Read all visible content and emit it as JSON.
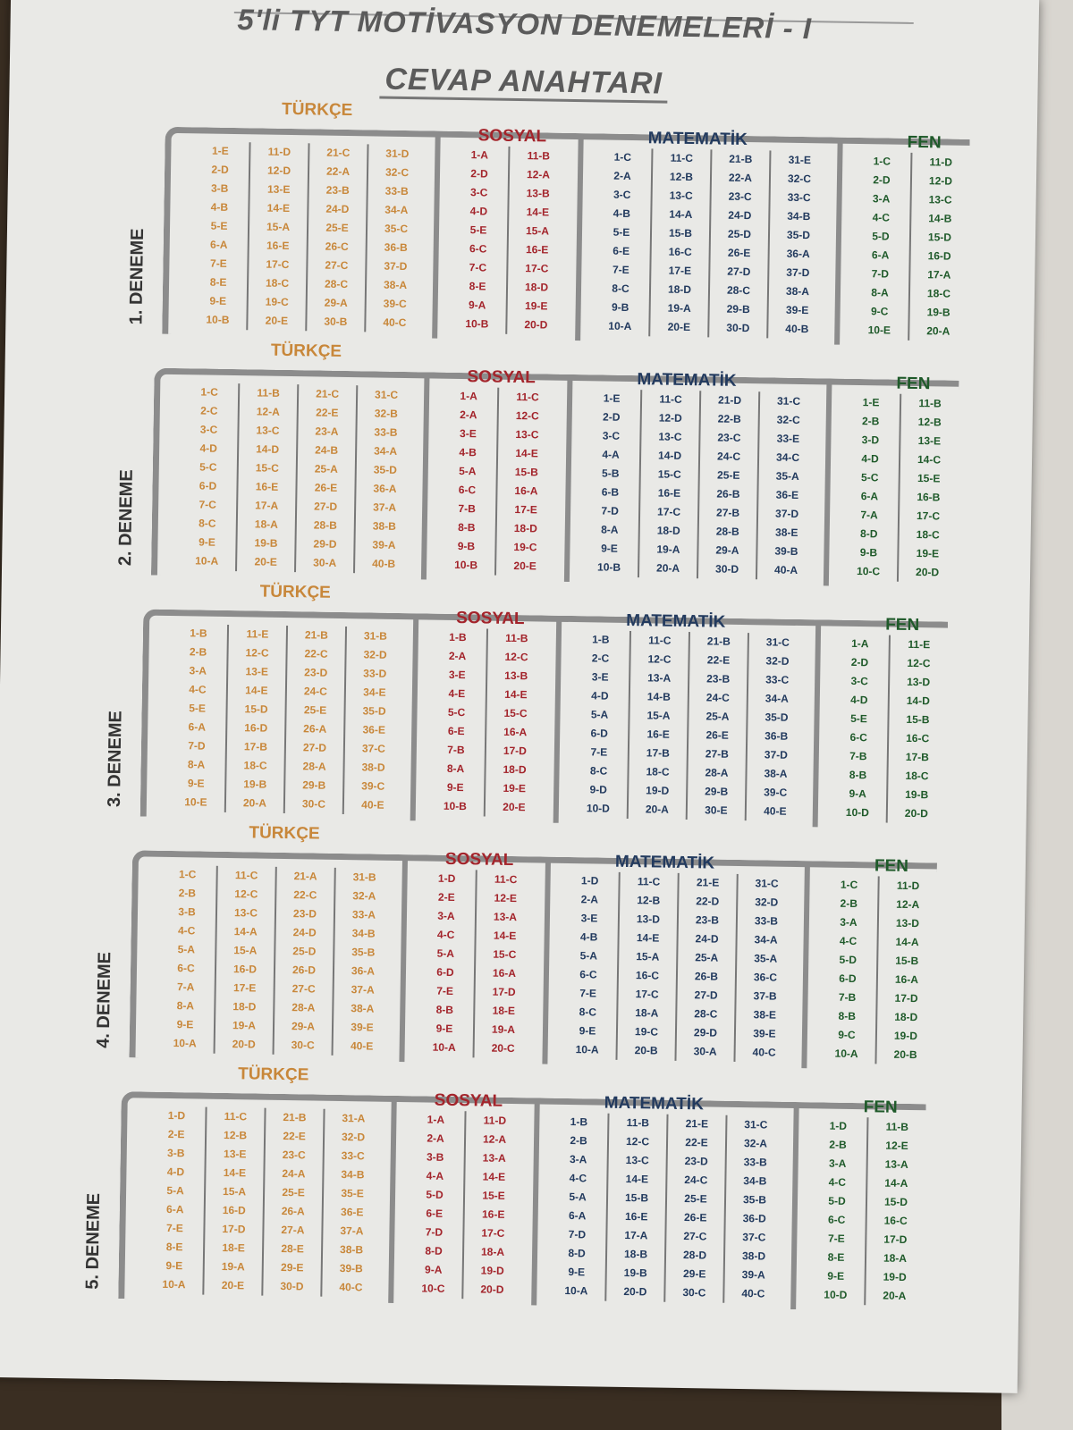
{
  "header": {
    "title": "5'li TYT MOTİVASYON DENEMELERİ - I",
    "subtitle": "CEVAP ANAHTARI"
  },
  "colors": {
    "turkce": "#c8873a",
    "sosyal": "#a3242b",
    "matematik": "#223a5e",
    "fen": "#1f5a2a"
  },
  "subjects": {
    "turkce": "TÜRKÇE",
    "sosyal": "SOSYAL",
    "matematik": "MATEMATİK",
    "fen": "FEN"
  },
  "denemeler": [
    {
      "label": "1. DENEME",
      "turkce": [
        "1-E",
        "2-D",
        "3-B",
        "4-B",
        "5-E",
        "6-A",
        "7-E",
        "8-E",
        "9-E",
        "10-B",
        "11-D",
        "12-D",
        "13-E",
        "14-E",
        "15-A",
        "16-E",
        "17-C",
        "18-C",
        "19-C",
        "20-E",
        "21-C",
        "22-A",
        "23-B",
        "24-D",
        "25-E",
        "26-C",
        "27-C",
        "28-C",
        "29-A",
        "30-B",
        "31-D",
        "32-C",
        "33-B",
        "34-A",
        "35-C",
        "36-B",
        "37-D",
        "38-A",
        "39-C",
        "40-C"
      ],
      "sosyal": [
        "1-A",
        "2-D",
        "3-C",
        "4-D",
        "5-E",
        "6-C",
        "7-C",
        "8-E",
        "9-A",
        "10-B",
        "11-B",
        "12-A",
        "13-B",
        "14-E",
        "15-A",
        "16-E",
        "17-C",
        "18-D",
        "19-E",
        "20-D"
      ],
      "matematik": [
        "1-C",
        "2-A",
        "3-C",
        "4-B",
        "5-E",
        "6-E",
        "7-E",
        "8-C",
        "9-B",
        "10-A",
        "11-C",
        "12-B",
        "13-C",
        "14-A",
        "15-B",
        "16-C",
        "17-E",
        "18-D",
        "19-A",
        "20-E",
        "21-B",
        "22-A",
        "23-C",
        "24-D",
        "25-D",
        "26-E",
        "27-D",
        "28-C",
        "29-B",
        "30-D",
        "31-E",
        "32-C",
        "33-C",
        "34-B",
        "35-D",
        "36-A",
        "37-D",
        "38-A",
        "39-E",
        "40-B"
      ],
      "fen": [
        "1-C",
        "2-D",
        "3-A",
        "4-C",
        "5-D",
        "6-A",
        "7-D",
        "8-A",
        "9-C",
        "10-E",
        "11-D",
        "12-D",
        "13-C",
        "14-B",
        "15-D",
        "16-D",
        "17-A",
        "18-C",
        "19-B",
        "20-A"
      ]
    },
    {
      "label": "2. DENEME",
      "turkce": [
        "1-C",
        "2-C",
        "3-C",
        "4-D",
        "5-C",
        "6-D",
        "7-C",
        "8-C",
        "9-E",
        "10-A",
        "11-B",
        "12-A",
        "13-C",
        "14-D",
        "15-C",
        "16-E",
        "17-A",
        "18-A",
        "19-B",
        "20-E",
        "21-C",
        "22-E",
        "23-A",
        "24-B",
        "25-A",
        "26-E",
        "27-D",
        "28-B",
        "29-D",
        "30-A",
        "31-C",
        "32-B",
        "33-B",
        "34-A",
        "35-D",
        "36-A",
        "37-A",
        "38-B",
        "39-A",
        "40-B"
      ],
      "sosyal": [
        "1-A",
        "2-A",
        "3-E",
        "4-B",
        "5-A",
        "6-C",
        "7-B",
        "8-B",
        "9-B",
        "10-B",
        "11-C",
        "12-C",
        "13-C",
        "14-E",
        "15-B",
        "16-A",
        "17-E",
        "18-D",
        "19-C",
        "20-E"
      ],
      "matematik": [
        "1-E",
        "2-D",
        "3-C",
        "4-A",
        "5-B",
        "6-B",
        "7-D",
        "8-A",
        "9-E",
        "10-B",
        "11-C",
        "12-D",
        "13-C",
        "14-D",
        "15-C",
        "16-E",
        "17-C",
        "18-D",
        "19-A",
        "20-A",
        "21-D",
        "22-B",
        "23-C",
        "24-C",
        "25-E",
        "26-B",
        "27-B",
        "28-B",
        "29-A",
        "30-D",
        "31-C",
        "32-C",
        "33-E",
        "34-C",
        "35-A",
        "36-E",
        "37-D",
        "38-E",
        "39-B",
        "40-A"
      ],
      "fen": [
        "1-E",
        "2-B",
        "3-D",
        "4-D",
        "5-C",
        "6-A",
        "7-A",
        "8-D",
        "9-B",
        "10-C",
        "11-B",
        "12-B",
        "13-E",
        "14-C",
        "15-E",
        "16-B",
        "17-C",
        "18-C",
        "19-E",
        "20-D"
      ]
    },
    {
      "label": "3. DENEME",
      "turkce": [
        "1-B",
        "2-B",
        "3-A",
        "4-C",
        "5-E",
        "6-A",
        "7-D",
        "8-A",
        "9-E",
        "10-E",
        "11-E",
        "12-C",
        "13-E",
        "14-E",
        "15-D",
        "16-D",
        "17-B",
        "18-C",
        "19-B",
        "20-A",
        "21-B",
        "22-C",
        "23-D",
        "24-C",
        "25-E",
        "26-A",
        "27-D",
        "28-A",
        "29-B",
        "30-C",
        "31-B",
        "32-D",
        "33-D",
        "34-E",
        "35-D",
        "36-E",
        "37-C",
        "38-D",
        "39-C",
        "40-E"
      ],
      "sosyal": [
        "1-B",
        "2-A",
        "3-E",
        "4-E",
        "5-C",
        "6-E",
        "7-B",
        "8-A",
        "9-E",
        "10-B",
        "11-B",
        "12-C",
        "13-B",
        "14-E",
        "15-C",
        "16-A",
        "17-D",
        "18-D",
        "19-E",
        "20-E"
      ],
      "matematik": [
        "1-B",
        "2-C",
        "3-E",
        "4-D",
        "5-A",
        "6-D",
        "7-E",
        "8-C",
        "9-D",
        "10-D",
        "11-C",
        "12-C",
        "13-A",
        "14-B",
        "15-A",
        "16-E",
        "17-B",
        "18-C",
        "19-D",
        "20-A",
        "21-B",
        "22-E",
        "23-B",
        "24-C",
        "25-A",
        "26-E",
        "27-B",
        "28-A",
        "29-B",
        "30-E",
        "31-C",
        "32-D",
        "33-C",
        "34-A",
        "35-D",
        "36-B",
        "37-D",
        "38-A",
        "39-C",
        "40-E"
      ],
      "fen": [
        "1-A",
        "2-D",
        "3-C",
        "4-D",
        "5-E",
        "6-C",
        "7-B",
        "8-B",
        "9-A",
        "10-D",
        "11-E",
        "12-C",
        "13-D",
        "14-D",
        "15-B",
        "16-C",
        "17-B",
        "18-C",
        "19-B",
        "20-D"
      ]
    },
    {
      "label": "4. DENEME",
      "turkce": [
        "1-C",
        "2-B",
        "3-B",
        "4-C",
        "5-A",
        "6-C",
        "7-A",
        "8-A",
        "9-E",
        "10-A",
        "11-C",
        "12-C",
        "13-C",
        "14-A",
        "15-A",
        "16-D",
        "17-E",
        "18-D",
        "19-A",
        "20-D",
        "21-A",
        "22-C",
        "23-D",
        "24-D",
        "25-D",
        "26-D",
        "27-C",
        "28-A",
        "29-A",
        "30-C",
        "31-B",
        "32-A",
        "33-A",
        "34-B",
        "35-B",
        "36-A",
        "37-A",
        "38-A",
        "39-E",
        "40-E"
      ],
      "sosyal": [
        "1-D",
        "2-E",
        "3-A",
        "4-C",
        "5-A",
        "6-D",
        "7-E",
        "8-B",
        "9-E",
        "10-A",
        "11-C",
        "12-E",
        "13-A",
        "14-E",
        "15-C",
        "16-A",
        "17-D",
        "18-E",
        "19-A",
        "20-C"
      ],
      "matematik": [
        "1-D",
        "2-A",
        "3-E",
        "4-B",
        "5-A",
        "6-C",
        "7-E",
        "8-C",
        "9-E",
        "10-A",
        "11-C",
        "12-B",
        "13-D",
        "14-E",
        "15-A",
        "16-C",
        "17-C",
        "18-A",
        "19-C",
        "20-B",
        "21-E",
        "22-D",
        "23-B",
        "24-D",
        "25-A",
        "26-B",
        "27-D",
        "28-C",
        "29-D",
        "30-A",
        "31-C",
        "32-D",
        "33-B",
        "34-A",
        "35-A",
        "36-C",
        "37-B",
        "38-E",
        "39-E",
        "40-C"
      ],
      "fen": [
        "1-C",
        "2-B",
        "3-A",
        "4-C",
        "5-D",
        "6-D",
        "7-B",
        "8-B",
        "9-C",
        "10-A",
        "11-D",
        "12-A",
        "13-D",
        "14-A",
        "15-B",
        "16-A",
        "17-D",
        "18-D",
        "19-D",
        "20-B"
      ]
    },
    {
      "label": "5. DENEME",
      "turkce": [
        "1-D",
        "2-E",
        "3-B",
        "4-D",
        "5-A",
        "6-A",
        "7-E",
        "8-E",
        "9-E",
        "10-A",
        "11-C",
        "12-B",
        "13-E",
        "14-E",
        "15-A",
        "16-D",
        "17-D",
        "18-E",
        "19-A",
        "20-E",
        "21-B",
        "22-E",
        "23-C",
        "24-A",
        "25-E",
        "26-A",
        "27-A",
        "28-E",
        "29-E",
        "30-D",
        "31-A",
        "32-D",
        "33-C",
        "34-B",
        "35-E",
        "36-E",
        "37-A",
        "38-B",
        "39-B",
        "40-C"
      ],
      "sosyal": [
        "1-A",
        "2-A",
        "3-B",
        "4-A",
        "5-D",
        "6-E",
        "7-D",
        "8-D",
        "9-A",
        "10-C",
        "11-D",
        "12-A",
        "13-A",
        "14-E",
        "15-E",
        "16-E",
        "17-C",
        "18-A",
        "19-D",
        "20-D"
      ],
      "matematik": [
        "1-B",
        "2-B",
        "3-A",
        "4-C",
        "5-A",
        "6-A",
        "7-D",
        "8-D",
        "9-E",
        "10-A",
        "11-B",
        "12-C",
        "13-C",
        "14-E",
        "15-B",
        "16-E",
        "17-A",
        "18-B",
        "19-B",
        "20-D",
        "21-E",
        "22-E",
        "23-D",
        "24-C",
        "25-E",
        "26-E",
        "27-C",
        "28-D",
        "29-E",
        "30-C",
        "31-C",
        "32-A",
        "33-B",
        "34-B",
        "35-B",
        "36-D",
        "37-C",
        "38-D",
        "39-A",
        "40-C"
      ],
      "fen": [
        "1-D",
        "2-B",
        "3-A",
        "4-C",
        "5-D",
        "6-C",
        "7-E",
        "8-E",
        "9-E",
        "10-D",
        "11-B",
        "12-E",
        "13-A",
        "14-A",
        "15-D",
        "16-C",
        "17-D",
        "18-A",
        "19-D",
        "20-A"
      ]
    }
  ]
}
